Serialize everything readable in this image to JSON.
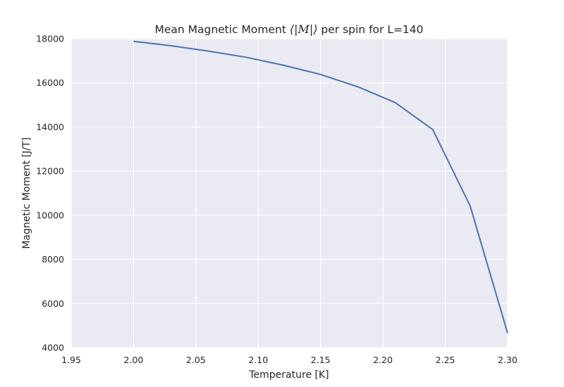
{
  "chart_data": {
    "type": "line",
    "title_prefix": "Mean Magnetic Moment ",
    "title_math": "⟨|M|⟩",
    "title_suffix": " per spin for L=140",
    "xlabel": "Temperature [K]",
    "ylabel": "Magnetic Moment [J/T]",
    "xlim": [
      1.95,
      2.3
    ],
    "ylim": [
      4000,
      18000
    ],
    "xticks": [
      "1.95",
      "2.00",
      "2.05",
      "2.10",
      "2.15",
      "2.20",
      "2.25",
      "2.30"
    ],
    "yticks": [
      "4000",
      "6000",
      "8000",
      "10000",
      "12000",
      "14000",
      "16000",
      "18000"
    ],
    "grid": true,
    "background": "#eaeaf2",
    "line_color": "#4c72b0",
    "series": [
      {
        "x": [
          2.0,
          2.03,
          2.06,
          2.09,
          2.12,
          2.15,
          2.18,
          2.21,
          2.24,
          2.27,
          2.3
        ],
        "values": [
          17880,
          17680,
          17440,
          17160,
          16800,
          16380,
          15820,
          15100,
          13880,
          10420,
          4660
        ]
      }
    ]
  }
}
